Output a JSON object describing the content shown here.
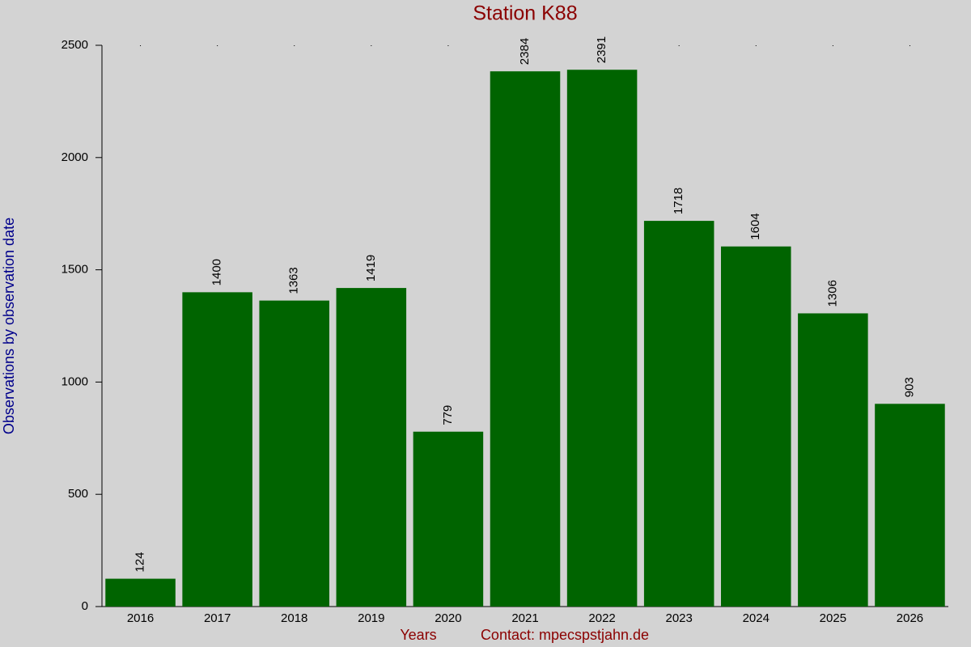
{
  "chart_data": {
    "type": "bar",
    "title": "Station K88",
    "x_label": "Years",
    "annotation": "Contact: mpecspstjahn.de",
    "y_label": "Observations by observation date",
    "categories": [
      "2016",
      "2017",
      "2018",
      "2019",
      "2020",
      "2021",
      "2022",
      "2023",
      "2024",
      "2025",
      "2026"
    ],
    "values": [
      124,
      1400,
      1363,
      1419,
      779,
      2384,
      2391,
      1718,
      1604,
      1306,
      903
    ],
    "color": "#006400",
    "ylim": [
      0,
      2500
    ],
    "yticks": [
      0,
      500,
      1000,
      1500,
      2000,
      2500
    ],
    "grid": false
  }
}
